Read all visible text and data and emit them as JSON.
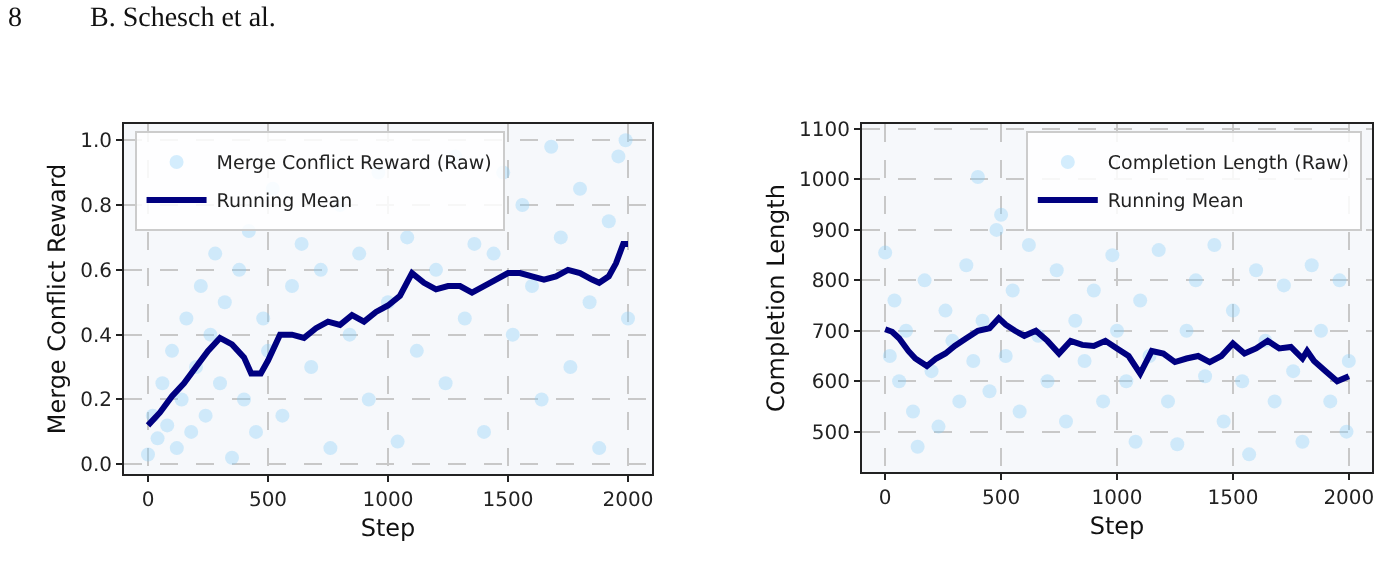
{
  "chart_data": [
    {
      "type": "scatter",
      "annotations": [
        "8",
        "B. Schesch et al."
      ],
      "xlabel": "Step",
      "ylabel": "Merge Conflict Reward",
      "xlim": [
        -100,
        2100
      ],
      "xticks": [
        0,
        500,
        1000,
        1500,
        2000
      ],
      "ylim": [
        -0.03,
        1.05
      ],
      "yticks": [
        {
          "value": 0,
          "label": "0.0"
        },
        0.2,
        0.4,
        0.6,
        0.8,
        {
          "value": 1,
          "label": "1.0"
        }
      ],
      "grid": true,
      "legend": "top left",
      "series": [
        {
          "name": "Merge Conflict Reward (Raw)",
          "marker": "circle",
          "color": "#87cefa",
          "x": [
            0,
            20,
            40,
            60,
            80,
            100,
            120,
            140,
            160,
            180,
            200,
            220,
            240,
            260,
            280,
            300,
            320,
            350,
            380,
            400,
            420,
            450,
            480,
            500,
            520,
            560,
            600,
            640,
            680,
            720,
            760,
            800,
            840,
            880,
            920,
            960,
            1000,
            1040,
            1080,
            1120,
            1160,
            1200,
            1240,
            1280,
            1320,
            1360,
            1400,
            1440,
            1480,
            1520,
            1560,
            1600,
            1640,
            1680,
            1720,
            1760,
            1800,
            1840,
            1880,
            1920,
            1960,
            2000,
            1990
          ],
          "values": [
            0.03,
            0.15,
            0.08,
            0.25,
            0.12,
            0.35,
            0.05,
            0.2,
            0.45,
            0.1,
            0.3,
            0.55,
            0.15,
            0.4,
            0.65,
            0.25,
            0.5,
            0.02,
            0.6,
            0.2,
            0.72,
            0.1,
            0.45,
            0.35,
            0.85,
            0.15,
            0.55,
            0.68,
            0.3,
            0.6,
            0.05,
            0.8,
            0.4,
            0.65,
            0.2,
            0.9,
            0.5,
            0.07,
            0.7,
            0.35,
            null,
            0.6,
            0.25,
            0.95,
            0.45,
            0.68,
            0.1,
            0.65,
            0.9,
            0.4,
            0.8,
            0.55,
            0.2,
            0.98,
            0.7,
            0.3,
            0.85,
            0.5,
            0.05,
            0.75,
            0.95,
            0.45,
            1.0
          ]
        },
        {
          "name": "Running Mean",
          "type": "line",
          "color": "#000080",
          "x": [
            0,
            50,
            100,
            150,
            200,
            250,
            300,
            350,
            400,
            430,
            470,
            500,
            550,
            600,
            650,
            700,
            750,
            800,
            850,
            900,
            950,
            1000,
            1050,
            1100,
            1150,
            1200,
            1250,
            1300,
            1350,
            1400,
            1450,
            1500,
            1550,
            1600,
            1650,
            1700,
            1750,
            1800,
            1850,
            1880,
            1920,
            1950,
            1980,
            2000
          ],
          "values": [
            0.12,
            0.16,
            0.21,
            0.25,
            0.3,
            0.35,
            0.39,
            0.37,
            0.33,
            0.28,
            0.28,
            0.32,
            0.4,
            0.4,
            0.39,
            0.42,
            0.44,
            0.43,
            0.46,
            0.44,
            0.47,
            0.49,
            0.52,
            0.59,
            0.56,
            0.54,
            0.55,
            0.55,
            0.53,
            0.55,
            0.57,
            0.59,
            0.59,
            0.58,
            0.57,
            0.58,
            0.6,
            0.59,
            0.57,
            0.56,
            0.58,
            0.62,
            0.68,
            0.68
          ]
        }
      ]
    },
    {
      "type": "scatter",
      "xlabel": "Step",
      "ylabel": "Completion Length",
      "xlim": [
        -100,
        2100
      ],
      "xticks": [
        0,
        500,
        1000,
        1500,
        2000
      ],
      "ylim": [
        420,
        1110
      ],
      "yticks": [
        500,
        600,
        700,
        800,
        900,
        1000,
        1100
      ],
      "grid": true,
      "legend": "top right",
      "series": [
        {
          "name": "Completion Length (Raw)",
          "marker": "circle",
          "color": "#87cefa",
          "x": [
            0,
            20,
            40,
            60,
            90,
            120,
            140,
            170,
            200,
            230,
            260,
            290,
            320,
            350,
            380,
            400,
            420,
            450,
            480,
            500,
            520,
            550,
            580,
            620,
            660,
            700,
            740,
            780,
            820,
            860,
            900,
            940,
            980,
            1000,
            1040,
            1080,
            1100,
            1140,
            1180,
            1220,
            1260,
            1300,
            1340,
            1380,
            1420,
            1460,
            1500,
            1540,
            1570,
            1600,
            1640,
            1680,
            1720,
            1760,
            1800,
            1840,
            1880,
            1920,
            1960,
            2000,
            1990
          ],
          "values": [
            855,
            650,
            760,
            600,
            700,
            540,
            470,
            800,
            620,
            510,
            740,
            680,
            560,
            830,
            640,
            1005,
            720,
            580,
            900,
            930,
            650,
            780,
            540,
            870,
            690,
            600,
            820,
            520,
            720,
            640,
            780,
            560,
            850,
            700,
            600,
            480,
            760,
            650,
            860,
            560,
            475,
            700,
            800,
            610,
            870,
            520,
            740,
            600,
            455,
            820,
            680,
            560,
            790,
            620,
            480,
            830,
            700,
            560,
            800,
            640,
            500
          ]
        },
        {
          "name": "Running Mean",
          "type": "line",
          "color": "#000080",
          "x": [
            0,
            30,
            60,
            100,
            130,
            180,
            220,
            260,
            300,
            350,
            400,
            450,
            490,
            520,
            560,
            600,
            650,
            700,
            750,
            800,
            850,
            900,
            950,
            1000,
            1050,
            1100,
            1150,
            1200,
            1250,
            1300,
            1350,
            1400,
            1450,
            1500,
            1550,
            1600,
            1650,
            1700,
            1750,
            1800,
            1820,
            1850,
            1900,
            1950,
            2000
          ],
          "values": [
            703,
            698,
            685,
            660,
            645,
            630,
            645,
            655,
            670,
            685,
            700,
            705,
            725,
            712,
            700,
            690,
            700,
            680,
            655,
            680,
            672,
            670,
            680,
            665,
            650,
            615,
            660,
            655,
            638,
            645,
            650,
            638,
            650,
            675,
            655,
            665,
            680,
            665,
            668,
            645,
            660,
            640,
            620,
            600,
            610
          ]
        }
      ]
    }
  ]
}
